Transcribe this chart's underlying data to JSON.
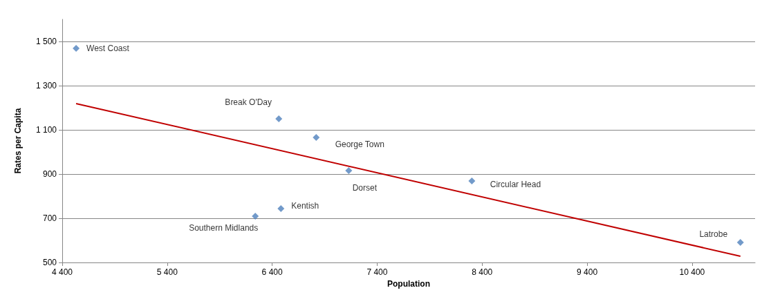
{
  "chart_data": {
    "type": "scatter",
    "xlabel": "Population",
    "ylabel": "Rates per Capita",
    "series": [
      {
        "color": "#4f81bd",
        "marker": "diamond",
        "x": [
          4532,
          6463,
          6819,
          7129,
          8302,
          6483,
          6239,
          10860
        ],
        "values": [
          1469,
          1150,
          1066,
          916,
          869,
          744,
          709,
          591
        ]
      },
      {
        "type": "line",
        "color": "#c00000",
        "marker": "none",
        "x": [
          4532,
          10860
        ],
        "values": [
          1219,
          528
        ]
      }
    ],
    "annotations": [
      {
        "text": "West Coast",
        "x": 4532,
        "y": 1469
      },
      {
        "text": "Break O'Day",
        "x": 6463,
        "y": 1150
      },
      {
        "text": "George Town",
        "x": 6819,
        "y": 1066
      },
      {
        "text": "Dorset",
        "x": 7129,
        "y": 916
      },
      {
        "text": "Circular Head",
        "x": 8302,
        "y": 869
      },
      {
        "text": "Kentish",
        "x": 6483,
        "y": 744
      },
      {
        "text": "Southern Midlands",
        "x": 6239,
        "y": 709
      },
      {
        "text": "Latrobe",
        "x": 10860,
        "y": 591
      }
    ],
    "xlim": [
      4400,
      11000
    ],
    "xticks": [
      {
        "value": 4400,
        "label": "4 400"
      },
      {
        "value": 5400,
        "label": "5 400"
      },
      {
        "value": 6400,
        "label": "6 400"
      },
      {
        "value": 7400,
        "label": "7 400"
      },
      {
        "value": 8400,
        "label": "8 400"
      },
      {
        "value": 9400,
        "label": "9 400"
      },
      {
        "value": 10400,
        "label": "10 400"
      }
    ],
    "ylim": [
      500,
      1600
    ],
    "yticks": [
      {
        "value": 500,
        "label": "500"
      },
      {
        "value": 700,
        "label": "700"
      },
      {
        "value": 900,
        "label": "900"
      },
      {
        "value": 1100,
        "label": "1 100"
      },
      {
        "value": 1300,
        "label": "1 300"
      },
      {
        "value": 1500,
        "label": "1 500"
      }
    ],
    "grid": "y"
  }
}
